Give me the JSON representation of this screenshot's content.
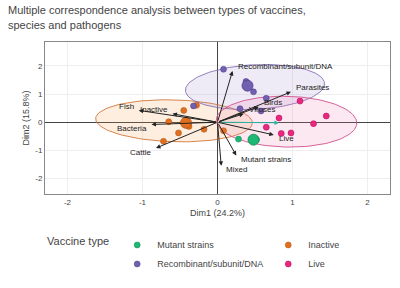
{
  "chart_data": {
    "type": "scatter",
    "title": "Multiple correspondence analysis between types of vaccines,\nspecies and pathogens",
    "xlabel": "Dim1 (24.2%)",
    "ylabel": "Dim2 (15.8%)",
    "xlim": [
      -2.3,
      2.3
    ],
    "ylim": [
      -2.55,
      2.85
    ],
    "xticks": [
      -2,
      -1,
      0,
      1,
      2
    ],
    "yticks": [
      -2,
      -1,
      0,
      1,
      2
    ],
    "grid": true,
    "legend": "bottom",
    "legend_title": "Vaccine type",
    "series": [
      {
        "name": "Mutant strains",
        "color": "#1db874",
        "edge_color": "#0d8a52",
        "x": [
          0.52,
          0.28
        ],
        "y": [
          -0.62,
          -0.6
        ],
        "center": [
          0.48,
          -0.62
        ]
      },
      {
        "name": "Inactive",
        "color": "#e07020",
        "edge_color": "#b05010",
        "x": [
          -0.52,
          -0.72,
          -0.38,
          -0.28,
          -0.18,
          0.08,
          -0.45,
          -0.65
        ],
        "y": [
          -0.38,
          -0.68,
          -0.15,
          0.6,
          -0.25,
          -0.3,
          0.42,
          0.02
        ],
        "center": [
          -0.42,
          -0.02
        ],
        "ellipse": {
          "center": [
            -0.58,
            0.05
          ],
          "width": 2.1,
          "height": 1.48,
          "angle": -8,
          "color": "#f5a050",
          "edge_color": "#d07030"
        }
      },
      {
        "name": "Recombinant/subunit/DNA",
        "color": "#7060b0",
        "edge_color": "#503888",
        "x": [
          0.08,
          0.38,
          0.48,
          0.65,
          0.58,
          0.3,
          -0.32
        ],
        "y": [
          1.88,
          1.45,
          1.08,
          0.85,
          0.4,
          0.48,
          0.58
        ],
        "center": [
          0.4,
          1.3
        ],
        "ellipse": {
          "center": [
            0.5,
            1.25
          ],
          "width": 1.9,
          "height": 1.55,
          "angle": 22,
          "color": "#a090d0",
          "edge_color": "#806ab0"
        }
      },
      {
        "name": "Live",
        "color": "#e8287f",
        "edge_color": "#b00058",
        "x": [
          1.1,
          0.98,
          0.85,
          1.28,
          0.65,
          1.45,
          0.82
        ],
        "y": [
          0.75,
          -0.38,
          -0.4,
          -0.05,
          -0.18,
          0.22,
          0.15
        ],
        "ellipse": {
          "center": [
            0.92,
            0.02
          ],
          "width": 1.9,
          "height": 1.78,
          "angle": -28,
          "color": "#f080b0",
          "edge_color": "#d04888"
        }
      }
    ],
    "vectors": [
      {
        "x": 0.82,
        "y": -0.02,
        "color": "#2ab5a0"
      },
      {
        "label": "Recombinant/subunit/DNA",
        "x": 0.2,
        "y": 1.82,
        "color": "#222222"
      },
      {
        "label": "Parasites",
        "x": 0.98,
        "y": 1.08,
        "color": "#222222"
      },
      {
        "label": "Birds",
        "x": 0.55,
        "y": 0.55,
        "color": "#222222"
      },
      {
        "label": "Viruses",
        "x": 0.35,
        "y": 0.3,
        "color": "#222222"
      },
      {
        "label": "Live",
        "x": 0.75,
        "y": -0.45,
        "color": "#222222"
      },
      {
        "label": "Mutant strains",
        "x": 0.25,
        "y": -1.18,
        "color": "#222222"
      },
      {
        "label": "Mixed",
        "x": 0.05,
        "y": -1.55,
        "color": "#222222"
      },
      {
        "label": "Cattle",
        "x": -0.82,
        "y": -0.92,
        "color": "#222222"
      },
      {
        "label": "Bacteria",
        "x": -0.88,
        "y": -0.08,
        "color": "#222222"
      },
      {
        "label": "Inactive",
        "x": -0.6,
        "y": 0.3,
        "color": "#222222"
      },
      {
        "label": "Fish",
        "x": -1.05,
        "y": 0.42,
        "color": "#222222"
      }
    ]
  }
}
